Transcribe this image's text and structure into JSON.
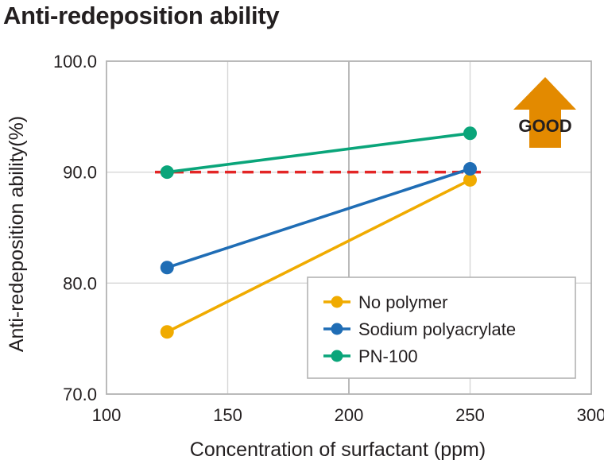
{
  "title": "Anti-redeposition ability",
  "annotation": {
    "text": "GOOD",
    "color": "#e38a00"
  },
  "chart_data": {
    "type": "line",
    "title": "Anti-redeposition ability",
    "xlabel": "Concentration of surfactant (ppm)",
    "ylabel": "Anti-redeposition ability(%)",
    "xlim": [
      100,
      300
    ],
    "ylim": [
      70.0,
      100.0
    ],
    "xticks": [
      "100",
      "150",
      "200",
      "250",
      "300"
    ],
    "yticks": [
      "70.0",
      "80.0",
      "90.0",
      "100.0"
    ],
    "grid": true,
    "legend_position": "bottom-right",
    "series": [
      {
        "name": "No polymer",
        "color": "#f0ab00",
        "x": [
          125,
          250
        ],
        "y": [
          75.6,
          89.3
        ]
      },
      {
        "name": "Sodium polyacrylate",
        "color": "#1f6db5",
        "x": [
          125,
          250
        ],
        "y": [
          81.4,
          90.3
        ]
      },
      {
        "name": "PN-100",
        "color": "#0aa57a",
        "x": [
          125,
          250
        ],
        "y": [
          90.0,
          93.5
        ]
      }
    ],
    "reference_line": {
      "y": 90.0,
      "x_range": [
        120,
        255
      ],
      "color": "#e32626",
      "style": "dashed"
    }
  }
}
